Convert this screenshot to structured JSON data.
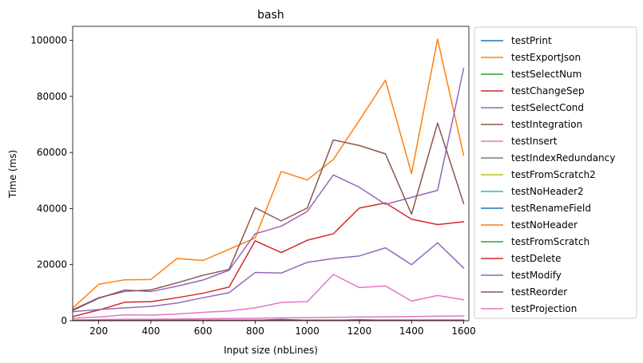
{
  "chart_data": {
    "type": "line",
    "title": "bash",
    "xlabel": "Input size (nbLines)",
    "ylabel": "Time (ms)",
    "xlim": [
      100,
      1620
    ],
    "ylim": [
      0,
      105000
    ],
    "xticks": [
      200,
      400,
      600,
      800,
      1000,
      1200,
      1400,
      1600
    ],
    "yticks": [
      0,
      20000,
      40000,
      60000,
      80000,
      100000
    ],
    "legend_position": "outside-right",
    "grid": false,
    "x": [
      100,
      200,
      300,
      400,
      500,
      600,
      700,
      800,
      900,
      1000,
      1100,
      1200,
      1300,
      1400,
      1500,
      1600
    ],
    "series": [
      {
        "name": "testPrint",
        "color": "#1f77b4",
        "values": [
          50,
          60,
          80,
          90,
          100,
          110,
          120,
          140,
          150,
          160,
          170,
          180,
          190,
          200,
          210,
          220
        ]
      },
      {
        "name": "testExportJson",
        "color": "#ff7f0e",
        "values": [
          4500,
          13000,
          14600,
          14700,
          22200,
          21500,
          25500,
          29500,
          53200,
          50200,
          57500,
          71500,
          85800,
          52500,
          100400,
          59000
        ]
      },
      {
        "name": "testSelectNum",
        "color": "#2ca02c",
        "values": [
          60,
          70,
          90,
          100,
          110,
          120,
          130,
          150,
          160,
          170,
          180,
          190,
          200,
          210,
          220,
          230
        ]
      },
      {
        "name": "testChangeSep",
        "color": "#d62728",
        "values": [
          1500,
          3800,
          6600,
          6800,
          8200,
          9800,
          12000,
          28500,
          24300,
          28700,
          31000,
          40200,
          42000,
          36200,
          34300,
          35300
        ]
      },
      {
        "name": "testSelectCond",
        "color": "#9467bd",
        "values": [
          3600,
          8000,
          11000,
          10400,
          12300,
          14500,
          18000,
          31000,
          33700,
          39000,
          52000,
          47600,
          41500,
          44000,
          46500,
          90000
        ]
      },
      {
        "name": "testIntegration",
        "color": "#8c564b",
        "values": [
          3900,
          8200,
          10500,
          11000,
          13500,
          16200,
          18300,
          40300,
          35600,
          40200,
          64500,
          62500,
          59500,
          38000,
          70500,
          41800
        ]
      },
      {
        "name": "testInsert",
        "color": "#e377c2",
        "values": [
          300,
          400,
          500,
          550,
          600,
          700,
          800,
          900,
          1000,
          1100,
          1200,
          1300,
          1400,
          1500,
          1600,
          1700
        ]
      },
      {
        "name": "testIndexRedundancy",
        "color": "#7f7f7f",
        "values": [
          40,
          50,
          60,
          70,
          80,
          90,
          100,
          110,
          500,
          150,
          140,
          350,
          160,
          170,
          180,
          190
        ]
      },
      {
        "name": "testFromScratch2",
        "color": "#bcbd22",
        "values": [
          30,
          40,
          50,
          60,
          70,
          80,
          90,
          100,
          110,
          120,
          130,
          140,
          150,
          160,
          170,
          180
        ]
      },
      {
        "name": "testNoHeader2",
        "color": "#17becf",
        "values": [
          20,
          30,
          40,
          50,
          60,
          70,
          80,
          90,
          100,
          110,
          120,
          130,
          140,
          150,
          160,
          170
        ]
      },
      {
        "name": "testRenameField",
        "color": "#1f77b4",
        "values": [
          25,
          35,
          45,
          55,
          65,
          75,
          85,
          95,
          105,
          115,
          125,
          135,
          145,
          155,
          165,
          175
        ]
      },
      {
        "name": "testNoHeader",
        "color": "#ff7f0e",
        "values": [
          35,
          45,
          55,
          65,
          75,
          85,
          95,
          105,
          115,
          125,
          135,
          145,
          155,
          165,
          175,
          185
        ]
      },
      {
        "name": "testFromScratch",
        "color": "#2ca02c",
        "values": [
          45,
          55,
          65,
          75,
          85,
          95,
          105,
          115,
          125,
          135,
          145,
          155,
          165,
          175,
          185,
          195
        ]
      },
      {
        "name": "testDelete",
        "color": "#d62728",
        "values": [
          55,
          65,
          75,
          85,
          95,
          105,
          115,
          125,
          135,
          145,
          155,
          165,
          175,
          185,
          195,
          205
        ]
      },
      {
        "name": "testModify",
        "color": "#9467bd",
        "values": [
          3200,
          4000,
          4600,
          5100,
          6300,
          8200,
          10000,
          17200,
          17000,
          20800,
          22200,
          23100,
          26000,
          20000,
          27800,
          18800
        ]
      },
      {
        "name": "testReorder",
        "color": "#8c564b",
        "values": [
          65,
          75,
          85,
          95,
          105,
          115,
          125,
          135,
          145,
          155,
          165,
          175,
          185,
          195,
          205,
          215
        ]
      },
      {
        "name": "testProjection",
        "color": "#e377c2",
        "values": [
          900,
          1300,
          2100,
          2000,
          2400,
          3000,
          3500,
          4600,
          6500,
          6800,
          16500,
          11800,
          12400,
          7000,
          9000,
          7500
        ]
      }
    ]
  }
}
